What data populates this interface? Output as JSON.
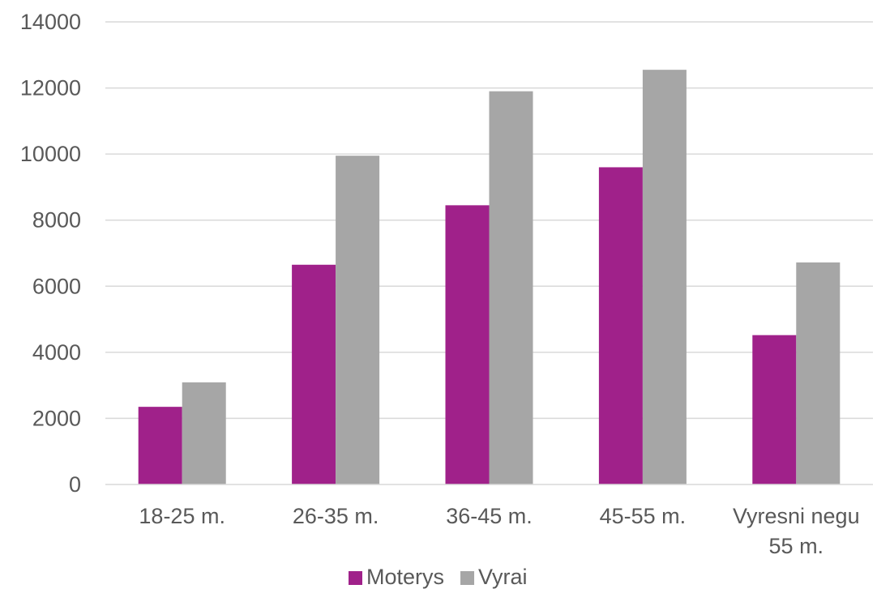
{
  "chart_data": {
    "type": "bar",
    "title": "",
    "xlabel": "",
    "ylabel": "",
    "categories": [
      [
        "18-25 m."
      ],
      [
        "26-35 m."
      ],
      [
        "36-45 m."
      ],
      [
        "45-55 m."
      ],
      [
        "Vyresni negu",
        "55 m."
      ]
    ],
    "series": [
      {
        "name": "Moterys",
        "color": "#a0218a",
        "values": [
          2350,
          6650,
          8450,
          9600,
          4520
        ]
      },
      {
        "name": "Vyrai",
        "color": "#a6a6a6",
        "values": [
          3090,
          9950,
          11900,
          12550,
          6720
        ]
      }
    ],
    "ylim": [
      0,
      14000
    ],
    "yticks": [
      "0",
      "2000",
      "4000",
      "6000",
      "8000",
      "10000",
      "12000",
      "14000"
    ],
    "grid": true,
    "legend_position": "bottom"
  }
}
